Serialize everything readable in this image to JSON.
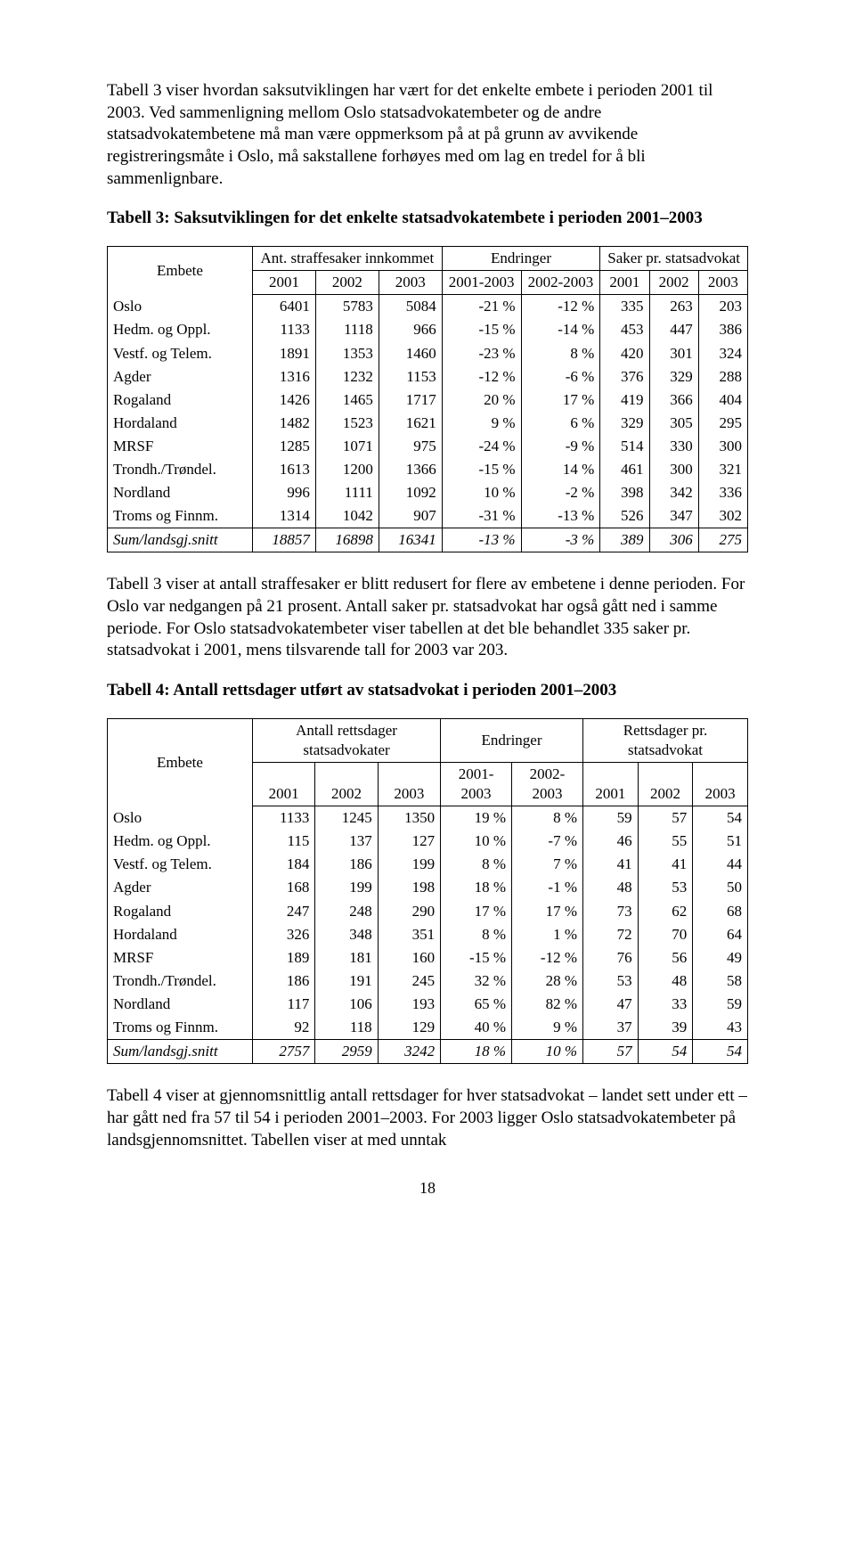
{
  "para1": "Tabell 3 viser hvordan saksutviklingen har vært for det enkelte embete i perioden 2001 til 2003. Ved sammenligning mellom Oslo statsadvokatembeter og de andre statsadvokatembetene må man være oppmerksom på at på grunn av avvikende registreringsmåte i Oslo, må sakstallene forhøyes med om lag en tredel for å bli sammenlignbare.",
  "table3_title": "Tabell 3: Saksutviklingen for det enkelte statsadvokatembete i perioden 2001–2003",
  "t3": {
    "h_embete": "Embete",
    "h_g1": "Ant. straffesaker innkommet",
    "h_g2": "Endringer",
    "h_g3": "Saker pr. statsadvokat",
    "years": [
      "2001",
      "2002",
      "2003",
      "2001-2003",
      "2002-2003",
      "2001",
      "2002",
      "2003"
    ],
    "rows": [
      {
        "l": "Oslo",
        "c": [
          "6401",
          "5783",
          "5084",
          "-21 %",
          "-12 %",
          "335",
          "263",
          "203"
        ]
      },
      {
        "l": "Hedm. og Oppl.",
        "c": [
          "1133",
          "1118",
          "966",
          "-15 %",
          "-14 %",
          "453",
          "447",
          "386"
        ]
      },
      {
        "l": "Vestf. og Telem.",
        "c": [
          "1891",
          "1353",
          "1460",
          "-23 %",
          "8 %",
          "420",
          "301",
          "324"
        ]
      },
      {
        "l": "Agder",
        "c": [
          "1316",
          "1232",
          "1153",
          "-12 %",
          "-6 %",
          "376",
          "329",
          "288"
        ]
      },
      {
        "l": "Rogaland",
        "c": [
          "1426",
          "1465",
          "1717",
          "20 %",
          "17 %",
          "419",
          "366",
          "404"
        ]
      },
      {
        "l": "Hordaland",
        "c": [
          "1482",
          "1523",
          "1621",
          "9 %",
          "6 %",
          "329",
          "305",
          "295"
        ]
      },
      {
        "l": "MRSF",
        "c": [
          "1285",
          "1071",
          "975",
          "-24 %",
          "-9 %",
          "514",
          "330",
          "300"
        ]
      },
      {
        "l": "Trondh./Trøndel.",
        "c": [
          "1613",
          "1200",
          "1366",
          "-15 %",
          "14 %",
          "461",
          "300",
          "321"
        ]
      },
      {
        "l": "Nordland",
        "c": [
          "996",
          "1111",
          "1092",
          "10 %",
          "-2 %",
          "398",
          "342",
          "336"
        ]
      },
      {
        "l": "Troms og Finnm.",
        "c": [
          "1314",
          "1042",
          "907",
          "-31 %",
          "-13 %",
          "526",
          "347",
          "302"
        ]
      }
    ],
    "sum": {
      "l": "Sum/landsgj.snitt",
      "c": [
        "18857",
        "16898",
        "16341",
        "-13 %",
        "-3 %",
        "389",
        "306",
        "275"
      ]
    }
  },
  "para2": "Tabell 3 viser at antall straffesaker er blitt redusert for flere av embetene i denne perioden. For Oslo var nedgangen på 21 prosent. Antall saker pr. statsadvokat har også gått ned i samme periode. For Oslo statsadvokatembeter viser tabellen at det ble behandlet 335 saker pr. statsadvokat i 2001, mens tilsvarende tall for 2003 var 203.",
  "table4_title": "Tabell 4: Antall rettsdager utført av statsadvokat i perioden 2001–2003",
  "t4": {
    "h_embete": "Embete",
    "h_g1": "Antall rettsdager statsadvokater",
    "h_g2": "Endringer",
    "h_g3": "Rettsdager pr. statsadvokat",
    "years": [
      "2001",
      "2002",
      "2003",
      "2001-2003",
      "2002-2003",
      "2001",
      "2002",
      "2003"
    ],
    "rows": [
      {
        "l": "Oslo",
        "c": [
          "1133",
          "1245",
          "1350",
          "19 %",
          "8 %",
          "59",
          "57",
          "54"
        ]
      },
      {
        "l": "Hedm. og Oppl.",
        "c": [
          "115",
          "137",
          "127",
          "10 %",
          "-7 %",
          "46",
          "55",
          "51"
        ]
      },
      {
        "l": "Vestf. og Telem.",
        "c": [
          "184",
          "186",
          "199",
          "8 %",
          "7 %",
          "41",
          "41",
          "44"
        ]
      },
      {
        "l": "Agder",
        "c": [
          "168",
          "199",
          "198",
          "18 %",
          "-1 %",
          "48",
          "53",
          "50"
        ]
      },
      {
        "l": "Rogaland",
        "c": [
          "247",
          "248",
          "290",
          "17 %",
          "17 %",
          "73",
          "62",
          "68"
        ]
      },
      {
        "l": "Hordaland",
        "c": [
          "326",
          "348",
          "351",
          "8 %",
          "1 %",
          "72",
          "70",
          "64"
        ]
      },
      {
        "l": "MRSF",
        "c": [
          "189",
          "181",
          "160",
          "-15 %",
          "-12 %",
          "76",
          "56",
          "49"
        ]
      },
      {
        "l": "Trondh./Trøndel.",
        "c": [
          "186",
          "191",
          "245",
          "32 %",
          "28 %",
          "53",
          "48",
          "58"
        ]
      },
      {
        "l": "Nordland",
        "c": [
          "117",
          "106",
          "193",
          "65 %",
          "82 %",
          "47",
          "33",
          "59"
        ]
      },
      {
        "l": "Troms og Finnm.",
        "c": [
          "92",
          "118",
          "129",
          "40 %",
          "9 %",
          "37",
          "39",
          "43"
        ]
      }
    ],
    "sum": {
      "l": "Sum/landsgj.snitt",
      "c": [
        "2757",
        "2959",
        "3242",
        "18 %",
        "10 %",
        "57",
        "54",
        "54"
      ]
    }
  },
  "para3": "Tabell 4 viser at gjennomsnittlig antall rettsdager for hver statsadvokat – landet sett under ett – har gått ned fra 57 til 54 i perioden 2001–2003. For 2003 ligger Oslo statsadvokatembeter på landsgjennomsnittet. Tabellen viser at med unntak",
  "page_number": "18"
}
